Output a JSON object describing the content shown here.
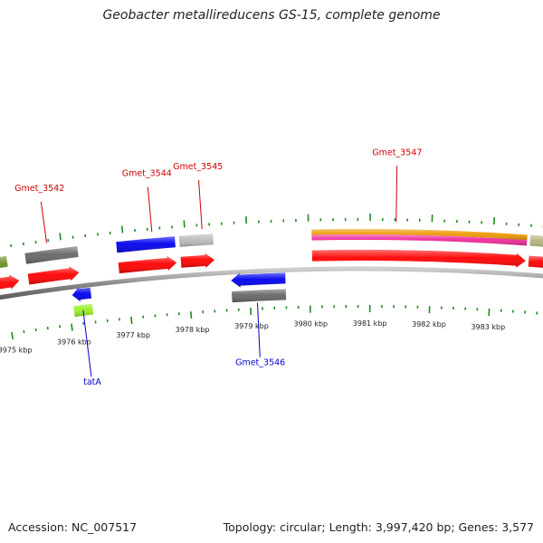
{
  "title": "Geobacter metallireducens GS-15, complete genome",
  "footer": {
    "accession": "Accession: NC_007517",
    "summary": "Topology: circular; Length: 3,997,420 bp; Genes: 3,577"
  },
  "colors": {
    "forward_label": "#cc0000",
    "reverse_label": "#0000cc",
    "tick": "#228822",
    "backbone": "#888888"
  },
  "kbp_ticks": [
    {
      "kbp": 3975,
      "label": "3975 kbp"
    },
    {
      "kbp": 3976,
      "label": "3976 kbp"
    },
    {
      "kbp": 3977,
      "label": "3977 kbp"
    },
    {
      "kbp": 3978,
      "label": "3978 kbp"
    },
    {
      "kbp": 3979,
      "label": "3979 kbp"
    },
    {
      "kbp": 3980,
      "label": "3980 kbp"
    },
    {
      "kbp": 3981,
      "label": "3981 kbp"
    },
    {
      "kbp": 3982,
      "label": "3982 kbp"
    },
    {
      "kbp": 3983,
      "label": "3983 kbp"
    }
  ],
  "gene_labels": [
    {
      "name": "Gmet_3542",
      "strand": "forward"
    },
    {
      "name": "Gmet_3544",
      "strand": "forward"
    },
    {
      "name": "Gmet_3545",
      "strand": "forward"
    },
    {
      "name": "Gmet_3547",
      "strand": "forward"
    },
    {
      "name": "tatA",
      "strand": "reverse"
    },
    {
      "name": "Gmet_3546",
      "strand": "reverse"
    }
  ],
  "features": [
    {
      "strand": "forward",
      "type": "gene",
      "color": "#ff0000",
      "start_kbp": 3974.55,
      "end_kbp": 3975.25,
      "arrow": true
    },
    {
      "strand": "forward",
      "type": "gene",
      "color": "#ff0000",
      "start_kbp": 3975.4,
      "end_kbp": 3976.23,
      "arrow": true
    },
    {
      "strand": "forward",
      "type": "gene",
      "color": "#ff0000",
      "start_kbp": 3976.88,
      "end_kbp": 3977.83,
      "arrow": true
    },
    {
      "strand": "forward",
      "type": "gene",
      "color": "#ff0000",
      "start_kbp": 3977.9,
      "end_kbp": 3978.45,
      "arrow": true
    },
    {
      "strand": "forward",
      "type": "gene",
      "color": "#ff0000",
      "start_kbp": 3980.05,
      "end_kbp": 3983.55,
      "arrow": true
    },
    {
      "strand": "forward",
      "type": "gene",
      "color": "#ff0000",
      "start_kbp": 3983.6,
      "end_kbp": 3984.2,
      "arrow": false
    },
    {
      "strand": "forward",
      "type": "feature",
      "color": "#6b8e23",
      "start_kbp": 3974.55,
      "end_kbp": 3975.1,
      "arrow": false
    },
    {
      "strand": "forward",
      "type": "feature",
      "color": "#666666",
      "start_kbp": 3975.4,
      "end_kbp": 3976.25,
      "arrow": false
    },
    {
      "strand": "forward",
      "type": "feature",
      "color": "#0000ee",
      "start_kbp": 3976.88,
      "end_kbp": 3977.83,
      "arrow": false
    },
    {
      "strand": "forward",
      "type": "feature",
      "color": "#bbbbbb",
      "start_kbp": 3977.9,
      "end_kbp": 3978.45,
      "arrow": false
    },
    {
      "strand": "forward",
      "type": "feature",
      "color": "#ee9900",
      "start_kbp": 3980.05,
      "end_kbp": 3983.55,
      "arrow": false
    },
    {
      "strand": "forward",
      "type": "feature",
      "color": "#ee2a9a",
      "start_kbp": 3980.05,
      "end_kbp": 3983.55,
      "arrow": false
    },
    {
      "strand": "forward",
      "type": "feature",
      "color": "#b5b27a",
      "start_kbp": 3983.6,
      "end_kbp": 3984.2,
      "arrow": false
    },
    {
      "strand": "reverse",
      "type": "gene",
      "color": "#0000ee",
      "start_kbp": 3976.07,
      "end_kbp": 3976.38,
      "arrow": true
    },
    {
      "strand": "reverse",
      "type": "gene",
      "color": "#0000ee",
      "start_kbp": 3978.7,
      "end_kbp": 3979.6,
      "arrow": true
    },
    {
      "strand": "reverse",
      "type": "feature",
      "color": "#99ee22",
      "start_kbp": 3976.07,
      "end_kbp": 3976.38,
      "arrow": false
    },
    {
      "strand": "reverse",
      "type": "feature",
      "color": "#666666",
      "start_kbp": 3978.7,
      "end_kbp": 3979.6,
      "arrow": false
    }
  ]
}
